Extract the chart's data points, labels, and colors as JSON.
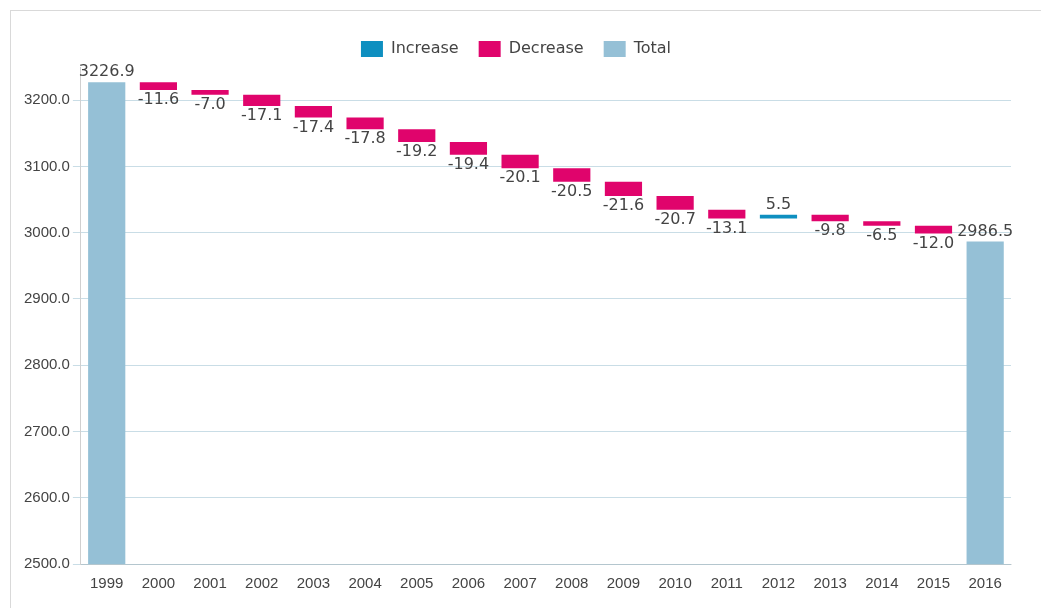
{
  "chart_data": {
    "type": "bar",
    "categories": [
      "1999",
      "2000",
      "2001",
      "2002",
      "2003",
      "2004",
      "2005",
      "2006",
      "2007",
      "2008",
      "2009",
      "2010",
      "2011",
      "2012",
      "2013",
      "2014",
      "2015",
      "2016"
    ],
    "series": [
      {
        "name": "Increase",
        "color": "#0e8fc0",
        "values": [
          null,
          null,
          null,
          null,
          null,
          null,
          null,
          null,
          null,
          null,
          null,
          null,
          null,
          5.5,
          null,
          null,
          null,
          null
        ],
        "base": [
          null,
          null,
          null,
          null,
          null,
          null,
          null,
          null,
          null,
          null,
          null,
          null,
          null,
          3021.4,
          null,
          null,
          null,
          null
        ],
        "value_labels": [
          null,
          null,
          null,
          null,
          null,
          null,
          null,
          null,
          null,
          null,
          null,
          null,
          null,
          "5.5",
          null,
          null,
          null,
          null
        ]
      },
      {
        "name": "Decrease",
        "color": "#e0046c",
        "values": [
          null,
          -11.6,
          -7.0,
          -17.1,
          -17.4,
          -17.8,
          -19.2,
          -19.4,
          -20.1,
          -20.5,
          -21.6,
          -20.7,
          -13.1,
          null,
          -9.8,
          -6.5,
          -12.0,
          null
        ],
        "base": [
          null,
          3226.9,
          3215.3,
          3208.3,
          3191.2,
          3173.8,
          3156.0,
          3136.8,
          3117.4,
          3097.3,
          3076.8,
          3055.2,
          3034.5,
          null,
          3026.9,
          3017.1,
          3010.6,
          null
        ],
        "value_labels": [
          null,
          "-11.6",
          "-7.0",
          "-17.1",
          "-17.4",
          "-17.8",
          "-19.2",
          "-19.4",
          "-20.1",
          "-20.5",
          "-21.6",
          "-20.7",
          "-13.1",
          null,
          "-9.8",
          "-6.5",
          "-12.0",
          null
        ]
      },
      {
        "name": "Total",
        "color": "#95c0d6",
        "values": [
          3226.9,
          null,
          null,
          null,
          null,
          null,
          null,
          null,
          null,
          null,
          null,
          null,
          null,
          null,
          null,
          null,
          null,
          2986.5
        ],
        "value_labels": [
          "3226.9",
          null,
          null,
          null,
          null,
          null,
          null,
          null,
          null,
          null,
          null,
          null,
          null,
          null,
          null,
          null,
          null,
          "2986.5"
        ]
      }
    ],
    "ylim": [
      2500,
      3250
    ],
    "yticks": [
      {
        "value": 2500,
        "label": "2500.0"
      },
      {
        "value": 2600,
        "label": "2600.0"
      },
      {
        "value": 2700,
        "label": "2700.0"
      },
      {
        "value": 2800,
        "label": "2800.0"
      },
      {
        "value": 2900,
        "label": "2900.0"
      },
      {
        "value": 3000,
        "label": "3000.0"
      },
      {
        "value": 3100,
        "label": "3100.0"
      },
      {
        "value": 3200,
        "label": "3200.0"
      }
    ],
    "grid": "y",
    "legend": "top"
  }
}
